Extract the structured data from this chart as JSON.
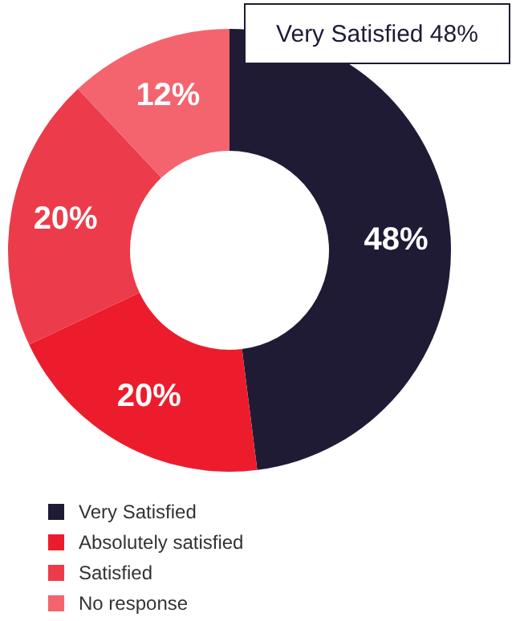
{
  "chart_data": {
    "type": "donut",
    "categories": [
      "Very Satisfied",
      "Absolutely satisfied",
      "Satisfied",
      "No response"
    ],
    "values": [
      48,
      20,
      20,
      12
    ],
    "colors": [
      "#1f1b35",
      "#ec1c2d",
      "#ec3b4b",
      "#f3646f"
    ],
    "value_labels": [
      "48%",
      "20%",
      "20%",
      "12%"
    ],
    "annotations": [
      "Very Satisfied 48%"
    ],
    "legend": "bottom left"
  }
}
